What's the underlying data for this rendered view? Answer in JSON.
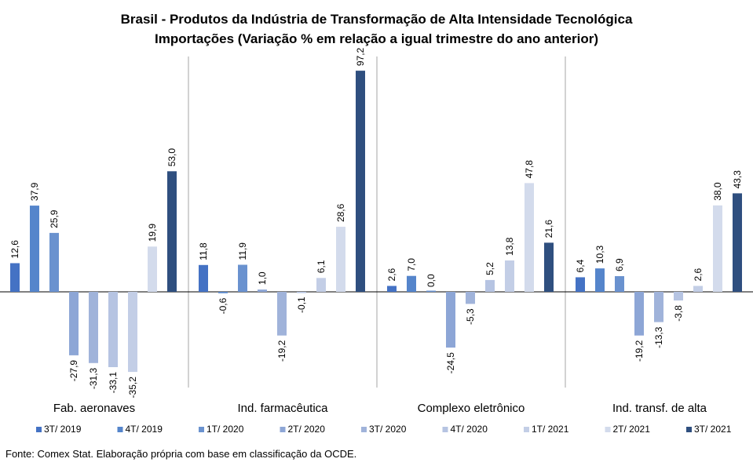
{
  "chart_data": {
    "type": "bar",
    "title": "Brasil - Produtos da Indústria de Transformação  de Alta Intensidade Tecnológica",
    "subtitle": "Importações (Variação % em relação a igual trimestre do ano anterior)",
    "categories": [
      "Fab. aeronaves",
      "Ind. farmacêutica",
      "Complexo eletrônico",
      "Ind. transf. de alta"
    ],
    "series": [
      {
        "name": "3T/ 2019",
        "color": "#4472C4",
        "values": [
          12.6,
          11.8,
          2.6,
          6.4
        ],
        "labels": [
          "12,6",
          "11,8",
          "2,6",
          "6,4"
        ]
      },
      {
        "name": "4T/ 2019",
        "color": "#5585CB",
        "values": [
          37.9,
          -0.6,
          7.0,
          10.3
        ],
        "labels": [
          "37,9",
          "-0,6",
          "7,0",
          "10,3"
        ]
      },
      {
        "name": "1T/ 2020",
        "color": "#6A92CF",
        "values": [
          25.9,
          11.9,
          0.0,
          6.9
        ],
        "labels": [
          "25,9",
          "11,9",
          "0,0",
          "6,9"
        ]
      },
      {
        "name": "2T/ 2020",
        "color": "#8DA6D6",
        "values": [
          -27.9,
          1.0,
          -24.5,
          -19.2
        ],
        "labels": [
          "-27,9",
          "1,0",
          "-24,5",
          "-19,2"
        ]
      },
      {
        "name": "3T/ 2020",
        "color": "#A0B3DA",
        "values": [
          -31.3,
          -19.2,
          -5.3,
          -13.3
        ],
        "labels": [
          "-31,3",
          "-19,2",
          "-5,3",
          "-13,3"
        ]
      },
      {
        "name": "4T/ 2020",
        "color": "#B6C4E2",
        "values": [
          -33.1,
          -0.1,
          5.2,
          -3.8
        ],
        "labels": [
          "-33,1",
          "-0,1",
          "5,2",
          "-3,8"
        ]
      },
      {
        "name": "1T/ 2021",
        "color": "#C3CEE6",
        "values": [
          -35.2,
          6.1,
          13.8,
          2.6
        ],
        "labels": [
          "-35,2",
          "6,1",
          "13,8",
          "2,6"
        ]
      },
      {
        "name": "2T/ 2021",
        "color": "#D3DBEC",
        "values": [
          19.9,
          28.6,
          47.8,
          38.0
        ],
        "labels": [
          "19,9",
          "28,6",
          "47,8",
          "38,0"
        ]
      },
      {
        "name": "3T/ 2021",
        "color": "#2F4F7F",
        "values": [
          53.0,
          97.2,
          21.6,
          43.3
        ],
        "labels": [
          "53,0",
          "97,2",
          "21,6",
          "43,3"
        ]
      }
    ],
    "ylim": [
      -42,
      104
    ],
    "grid": false,
    "legend_position": "bottom",
    "colors": {
      "axis": "#000000",
      "separator": "#A6A6A6"
    }
  },
  "source": "Fonte: Comex Stat. Elaboração própria com base em classificação da OCDE."
}
